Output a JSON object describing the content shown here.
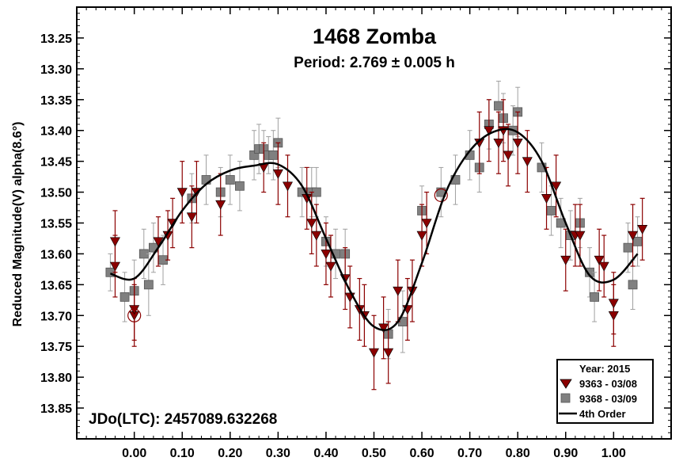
{
  "chart_data": {
    "type": "scatter",
    "title": "1468 Zomba",
    "subtitle": "Period: 2.769 ± 0.005 h",
    "ylabel": "Reduced Magnitude(V) alpha(8.6°)",
    "xlabel": "",
    "annotation": "JDo(LTC): 2457089.632268",
    "xlim": [
      -0.12,
      1.12
    ],
    "ylim": [
      13.2,
      13.9
    ],
    "y_inverted": true,
    "x_ticks": [
      0.0,
      0.1,
      0.2,
      0.3,
      0.4,
      0.5,
      0.6,
      0.7,
      0.8,
      0.9,
      1.0
    ],
    "x_tick_labels": [
      "0.00",
      "0.10",
      "0.20",
      "0.30",
      "0.40",
      "0.50",
      "0.60",
      "0.70",
      "0.80",
      "0.90",
      "1.00"
    ],
    "y_ticks": [
      13.25,
      13.3,
      13.35,
      13.4,
      13.45,
      13.5,
      13.55,
      13.6,
      13.65,
      13.7,
      13.75,
      13.8,
      13.85
    ],
    "y_tick_labels": [
      "13.25",
      "13.30",
      "13.35",
      "13.40",
      "13.45",
      "13.50",
      "13.55",
      "13.60",
      "13.65",
      "13.70",
      "13.75",
      "13.80",
      "13.85"
    ],
    "legend": {
      "title": "Year: 2015",
      "position": "bottom-right",
      "entries": [
        "9363 - 03/08",
        "9368 - 03/09",
        "4th Order"
      ]
    },
    "colors": {
      "series1": "#8b0000",
      "series2": "#808080",
      "series2_error": "#a0a0a0",
      "curve": "#000000"
    },
    "series": [
      {
        "name": "9363 - 03/08",
        "marker": "triangle-down",
        "points": [
          [
            -0.04,
            13.62,
            0.05
          ],
          [
            -0.04,
            13.58,
            0.05
          ],
          [
            0.0,
            13.7,
            0.05
          ],
          [
            0.0,
            13.69,
            0.05
          ],
          [
            0.05,
            13.58,
            0.04
          ],
          [
            0.07,
            13.57,
            0.04
          ],
          [
            0.08,
            13.55,
            0.04
          ],
          [
            0.1,
            13.5,
            0.05
          ],
          [
            0.12,
            13.54,
            0.05
          ],
          [
            0.13,
            13.5,
            0.05
          ],
          [
            0.18,
            13.52,
            0.05
          ],
          [
            0.27,
            13.46,
            0.04
          ],
          [
            0.3,
            13.47,
            0.05
          ],
          [
            0.32,
            13.49,
            0.05
          ],
          [
            0.36,
            13.51,
            0.05
          ],
          [
            0.37,
            13.55,
            0.05
          ],
          [
            0.38,
            13.57,
            0.05
          ],
          [
            0.4,
            13.6,
            0.05
          ],
          [
            0.41,
            13.62,
            0.05
          ],
          [
            0.44,
            13.64,
            0.05
          ],
          [
            0.45,
            13.67,
            0.05
          ],
          [
            0.47,
            13.69,
            0.05
          ],
          [
            0.48,
            13.7,
            0.05
          ],
          [
            0.5,
            13.76,
            0.06
          ],
          [
            0.52,
            13.72,
            0.05
          ],
          [
            0.53,
            13.76,
            0.05
          ],
          [
            0.55,
            13.66,
            0.05
          ],
          [
            0.57,
            13.69,
            0.05
          ],
          [
            0.58,
            13.66,
            0.05
          ],
          [
            0.6,
            13.57,
            0.05
          ],
          [
            0.61,
            13.55,
            0.05
          ],
          [
            0.72,
            13.42,
            0.05
          ],
          [
            0.74,
            13.4,
            0.05
          ],
          [
            0.76,
            13.42,
            0.05
          ],
          [
            0.77,
            13.4,
            0.05
          ],
          [
            0.78,
            13.44,
            0.05
          ],
          [
            0.8,
            13.42,
            0.05
          ],
          [
            0.82,
            13.45,
            0.05
          ],
          [
            0.86,
            13.51,
            0.05
          ],
          [
            0.88,
            13.49,
            0.05
          ],
          [
            0.9,
            13.61,
            0.05
          ],
          [
            0.92,
            13.57,
            0.05
          ],
          [
            0.93,
            13.57,
            0.05
          ],
          [
            0.97,
            13.61,
            0.05
          ],
          [
            0.98,
            13.62,
            0.05
          ],
          [
            1.0,
            13.7,
            0.05
          ],
          [
            1.0,
            13.68,
            0.05
          ],
          [
            1.04,
            13.57,
            0.05
          ],
          [
            1.06,
            13.56,
            0.05
          ]
        ]
      },
      {
        "name": "9368 - 03/09",
        "marker": "square",
        "points": [
          [
            -0.05,
            13.63,
            0.03
          ],
          [
            -0.02,
            13.67,
            0.04
          ],
          [
            0.0,
            13.66,
            0.05
          ],
          [
            0.02,
            13.6,
            0.04
          ],
          [
            0.03,
            13.65,
            0.05
          ],
          [
            0.04,
            13.59,
            0.04
          ],
          [
            0.06,
            13.61,
            0.04
          ],
          [
            0.12,
            13.51,
            0.04
          ],
          [
            0.15,
            13.48,
            0.04
          ],
          [
            0.18,
            13.5,
            0.04
          ],
          [
            0.2,
            13.48,
            0.04
          ],
          [
            0.22,
            13.49,
            0.04
          ],
          [
            0.25,
            13.44,
            0.04
          ],
          [
            0.26,
            13.43,
            0.04
          ],
          [
            0.27,
            13.43,
            0.03
          ],
          [
            0.28,
            13.44,
            0.03
          ],
          [
            0.29,
            13.44,
            0.04
          ],
          [
            0.3,
            13.42,
            0.04
          ],
          [
            0.35,
            13.5,
            0.04
          ],
          [
            0.37,
            13.5,
            0.04
          ],
          [
            0.38,
            13.5,
            0.04
          ],
          [
            0.4,
            13.58,
            0.04
          ],
          [
            0.42,
            13.6,
            0.04
          ],
          [
            0.44,
            13.6,
            0.04
          ],
          [
            0.53,
            13.73,
            0.04
          ],
          [
            0.56,
            13.71,
            0.05
          ],
          [
            0.6,
            13.53,
            0.04
          ],
          [
            0.64,
            13.5,
            0.04
          ],
          [
            0.67,
            13.48,
            0.04
          ],
          [
            0.7,
            13.44,
            0.04
          ],
          [
            0.72,
            13.46,
            0.04
          ],
          [
            0.74,
            13.39,
            0.04
          ],
          [
            0.76,
            13.36,
            0.04
          ],
          [
            0.77,
            13.38,
            0.04
          ],
          [
            0.79,
            13.4,
            0.04
          ],
          [
            0.8,
            13.37,
            0.04
          ],
          [
            0.85,
            13.46,
            0.04
          ],
          [
            0.87,
            13.53,
            0.04
          ],
          [
            0.89,
            13.55,
            0.04
          ],
          [
            0.91,
            13.57,
            0.04
          ],
          [
            0.93,
            13.55,
            0.04
          ],
          [
            0.95,
            13.63,
            0.04
          ],
          [
            0.96,
            13.67,
            0.04
          ],
          [
            1.03,
            13.59,
            0.04
          ],
          [
            1.04,
            13.65,
            0.04
          ],
          [
            1.05,
            13.58,
            0.04
          ]
        ]
      }
    ],
    "fit_curve": {
      "name": "4th Order",
      "x": [
        -0.05,
        0.0,
        0.05,
        0.1,
        0.15,
        0.2,
        0.25,
        0.3,
        0.35,
        0.4,
        0.45,
        0.5,
        0.55,
        0.6,
        0.65,
        0.7,
        0.75,
        0.8,
        0.85,
        0.9,
        0.95,
        1.0,
        1.05
      ],
      "y": [
        13.632,
        13.64,
        13.59,
        13.53,
        13.487,
        13.465,
        13.457,
        13.455,
        13.49,
        13.575,
        13.66,
        13.718,
        13.71,
        13.615,
        13.5,
        13.433,
        13.402,
        13.403,
        13.45,
        13.55,
        13.635,
        13.642,
        13.6
      ]
    },
    "highlighted_points": [
      [
        0.0,
        13.7
      ],
      [
        0.64,
        13.505
      ]
    ]
  }
}
